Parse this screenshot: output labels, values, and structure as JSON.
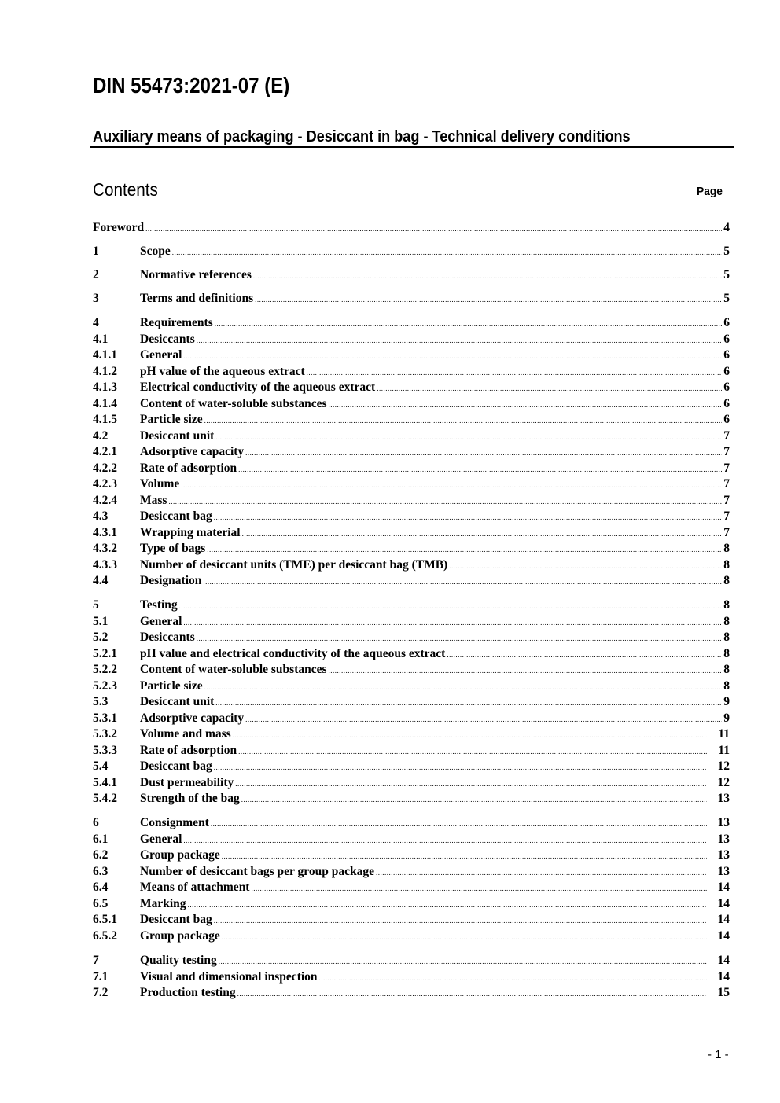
{
  "header": {
    "doc_title": "DIN 55473:2021-07 (E)",
    "subtitle": "Auxiliary means of packaging - Desiccant in bag - Technical delivery conditions",
    "contents_heading": "Contents",
    "page_heading": "Page"
  },
  "toc_groups": [
    [
      {
        "num": "",
        "title": "Foreword",
        "page": "4"
      }
    ],
    [
      {
        "num": "1",
        "title": "Scope",
        "page": "5"
      }
    ],
    [
      {
        "num": "2",
        "title": "Normative references",
        "page": "5"
      }
    ],
    [
      {
        "num": "3",
        "title": "Terms and definitions",
        "page": "5"
      }
    ],
    [
      {
        "num": "4",
        "title": "Requirements",
        "page": "6"
      },
      {
        "num": "4.1",
        "title": "Desiccants",
        "page": "6"
      },
      {
        "num": "4.1.1",
        "title": "General",
        "page": "6"
      },
      {
        "num": "4.1.2",
        "title": "pH value of the aqueous extract",
        "page": "6"
      },
      {
        "num": "4.1.3",
        "title": "Electrical conductivity of the aqueous extract",
        "page": "6"
      },
      {
        "num": "4.1.4",
        "title": "Content of water-soluble substances",
        "page": "6"
      },
      {
        "num": "4.1.5",
        "title": "Particle size",
        "page": "6"
      },
      {
        "num": "4.2",
        "title": "Desiccant unit",
        "page": "7"
      },
      {
        "num": "4.2.1",
        "title": "Adsorptive capacity",
        "page": "7"
      },
      {
        "num": "4.2.2",
        "title": "Rate of adsorption",
        "page": "7"
      },
      {
        "num": "4.2.3",
        "title": "Volume",
        "page": "7"
      },
      {
        "num": "4.2.4",
        "title": "Mass",
        "page": "7"
      },
      {
        "num": "4.3",
        "title": "Desiccant bag",
        "page": "7"
      },
      {
        "num": "4.3.1",
        "title": "Wrapping material",
        "page": "7"
      },
      {
        "num": "4.3.2",
        "title": "Type of bags",
        "page": "8"
      },
      {
        "num": "4.3.3",
        "title": "Number of desiccant units (TME) per desiccant bag (TMB)",
        "page": "8"
      },
      {
        "num": "4.4",
        "title": "Designation",
        "page": "8"
      }
    ],
    [
      {
        "num": "5",
        "title": "Testing",
        "page": "8"
      },
      {
        "num": "5.1",
        "title": "General",
        "page": "8"
      },
      {
        "num": "5.2",
        "title": "Desiccants",
        "page": "8"
      },
      {
        "num": "5.2.1",
        "title": "pH value and electrical conductivity of the aqueous extract",
        "page": "8"
      },
      {
        "num": "5.2.2",
        "title": "Content of water-soluble substances",
        "page": "8"
      },
      {
        "num": "5.2.3",
        "title": "Particle size",
        "page": "8"
      },
      {
        "num": "5.3",
        "title": "Desiccant unit",
        "page": "9"
      },
      {
        "num": "5.3.1",
        "title": "Adsorptive capacity",
        "page": "9"
      },
      {
        "num": "5.3.2",
        "title": "Volume and mass",
        "page": "11"
      },
      {
        "num": "5.3.3",
        "title": "Rate of adsorption",
        "page": "11"
      },
      {
        "num": "5.4",
        "title": "Desiccant bag",
        "page": "12"
      },
      {
        "num": "5.4.1",
        "title": "Dust permeability",
        "page": "12"
      },
      {
        "num": "5.4.2",
        "title": "Strength of the bag",
        "page": "13"
      }
    ],
    [
      {
        "num": "6",
        "title": "Consignment",
        "page": "13"
      },
      {
        "num": "6.1",
        "title": "General",
        "page": "13"
      },
      {
        "num": "6.2",
        "title": "Group package",
        "page": "13"
      },
      {
        "num": "6.3",
        "title": "Number of desiccant bags per group package",
        "page": "13"
      },
      {
        "num": "6.4",
        "title": "Means of attachment",
        "page": "14"
      },
      {
        "num": "6.5",
        "title": "Marking",
        "page": "14"
      },
      {
        "num": "6.5.1",
        "title": "Desiccant bag",
        "page": "14"
      },
      {
        "num": "6.5.2",
        "title": "Group package",
        "page": "14"
      }
    ],
    [
      {
        "num": "7",
        "title": "Quality testing",
        "page": "14"
      },
      {
        "num": "7.1",
        "title": "Visual and dimensional inspection",
        "page": "14"
      },
      {
        "num": "7.2",
        "title": "Production testing",
        "page": "15"
      }
    ]
  ],
  "footer": {
    "page_number": "- 1 -"
  }
}
